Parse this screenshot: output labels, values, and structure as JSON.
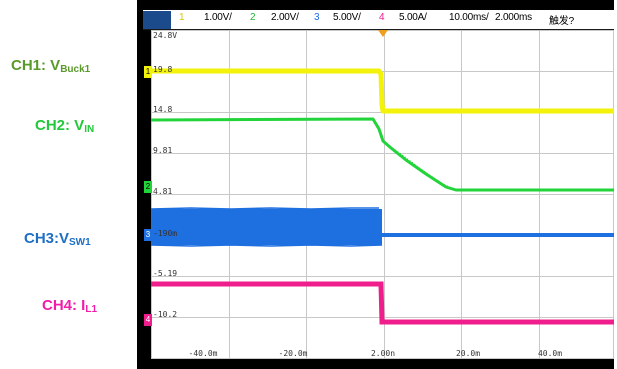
{
  "labels": {
    "ch1": {
      "text": "CH1: V",
      "sub": "Buck1",
      "color": "#5a9a2a"
    },
    "ch2": {
      "text": "CH2: V",
      "sub": "IN",
      "color": "#22c93a"
    },
    "ch3": {
      "text": "CH3:V",
      "sub": "SW1",
      "color": "#1e6fc4"
    },
    "ch4": {
      "text": "CH4: I",
      "sub": "L1",
      "color": "#f01ea8"
    }
  },
  "header": {
    "ch1_num": "1",
    "ch1_scale": "1.00V/",
    "ch2_num": "2",
    "ch2_scale": "2.00V/",
    "ch3_num": "3",
    "ch3_scale": "5.00V/",
    "ch4_num": "4",
    "ch4_scale": "5.00A/",
    "timebase": "10.00ms/",
    "delay": "2.000ms",
    "trigger": "触发?"
  },
  "colors": {
    "ch1": "#f2f20a",
    "ch2": "#22d43a",
    "ch3": "#1e6fe0",
    "ch4": "#f01e8c",
    "grid": "#c8c8c8",
    "frame": "#000000",
    "header_num_ch1": "#d8c800",
    "header_num_ch2": "#22b43a",
    "header_num_ch3": "#1e6fe0",
    "header_num_ch4": "#f01e8c",
    "trigger_marker": "#f0a020"
  },
  "scale_labels": [
    "24.8V",
    "19.8",
    "14.8",
    "9.81",
    "4.81",
    "-190m",
    "-5.19",
    "-10.2"
  ],
  "x_ticks": [
    "-40.0m",
    "-20.0m",
    "2.00n",
    "20.0m",
    "40.0m"
  ],
  "channel_markers": [
    "1",
    "2",
    "3",
    "4"
  ]
}
